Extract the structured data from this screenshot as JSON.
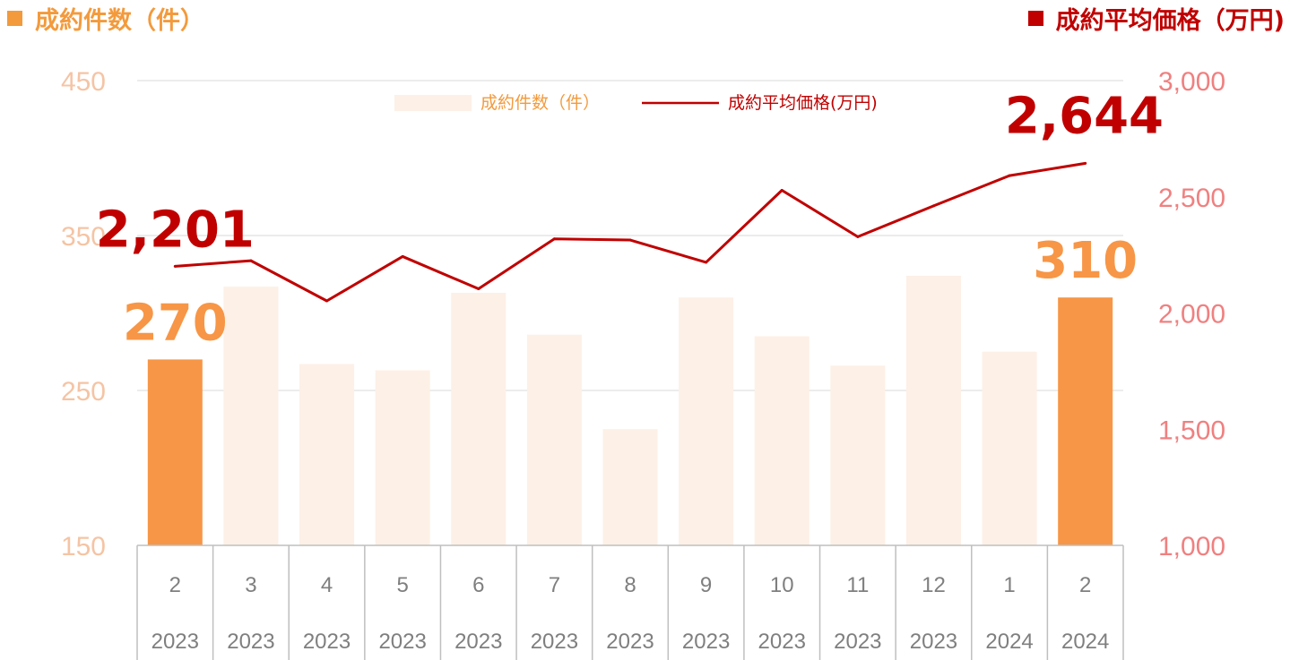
{
  "header": {
    "left_title": "成約件数（件）",
    "right_title": "成約平均価格（万円)"
  },
  "chart_data": {
    "type": "bar",
    "title": "",
    "categories": [
      "2",
      "3",
      "4",
      "5",
      "6",
      "7",
      "8",
      "9",
      "10",
      "11",
      "12",
      "1",
      "2"
    ],
    "years": [
      "2023",
      "2023",
      "2023",
      "2023",
      "2023",
      "2023",
      "2023",
      "2023",
      "2023",
      "2023",
      "2023",
      "2024",
      "2024"
    ],
    "series": [
      {
        "name": "成約件数（件）",
        "type": "bar",
        "axis": "left",
        "values": [
          270,
          317,
          267,
          263,
          313,
          286,
          225,
          310,
          285,
          266,
          324,
          275,
          310
        ]
      },
      {
        "name": "成約平均価格(万円)",
        "type": "line",
        "axis": "right",
        "values": [
          2201,
          2225,
          2052,
          2243,
          2104,
          2319,
          2314,
          2218,
          2528,
          2328,
          2461,
          2591,
          2644
        ]
      }
    ],
    "left_axis": {
      "ylim": [
        150,
        450
      ],
      "ticks": [
        "150",
        "250",
        "350",
        "450"
      ]
    },
    "right_axis": {
      "ylim": [
        1000,
        3000
      ],
      "ticks": [
        "1,000",
        "1,500",
        "2,000",
        "2,500",
        "3,000"
      ]
    },
    "annotations": {
      "first_bar": "270",
      "last_bar": "310",
      "first_price": "2,201",
      "last_price": "2,644"
    },
    "highlighted_bars": [
      0,
      12
    ],
    "legend_position": "top-center",
    "grid": true,
    "colors": {
      "bar_highlight": "#f79646",
      "bar_faded": "#fdf0e6",
      "line": "#c00000",
      "left_axis_text": "#f5c4a4",
      "right_axis_text": "#f08080",
      "gridline": "#d9d9d9",
      "category_text": "#7f7f7f",
      "header_left": "#f39a3c",
      "header_right": "#c00000"
    }
  }
}
